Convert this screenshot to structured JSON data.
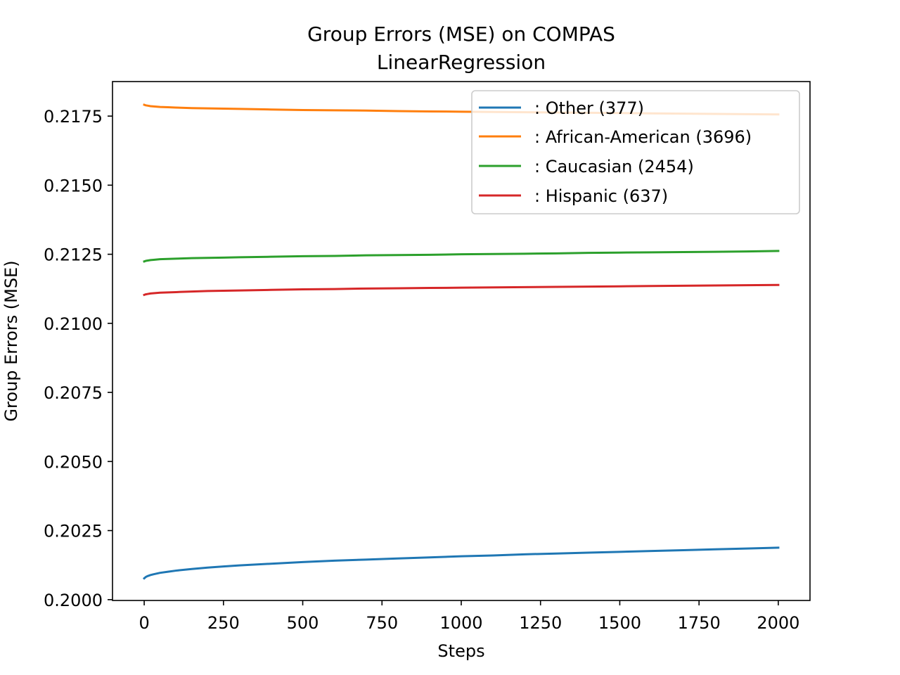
{
  "chart_data": {
    "type": "line",
    "title": "Group Errors (MSE) on COMPAS",
    "subtitle": "LinearRegression",
    "xlabel": "Steps",
    "ylabel": "Group Errors (MSE)",
    "xlim": [
      -100,
      2100
    ],
    "ylim": [
      0.19997,
      0.21875
    ],
    "x_ticks": [
      0,
      250,
      500,
      750,
      1000,
      1250,
      1500,
      1750,
      2000
    ],
    "x_tick_labels": [
      "0",
      "250",
      "500",
      "750",
      "1000",
      "1250",
      "1500",
      "1750",
      "2000"
    ],
    "y_ticks": [
      0.2,
      0.2025,
      0.205,
      0.2075,
      0.21,
      0.2125,
      0.215,
      0.2175
    ],
    "y_tick_labels": [
      "0.2000",
      "0.2025",
      "0.2050",
      "0.2075",
      "0.2100",
      "0.2125",
      "0.2150",
      "0.2175"
    ],
    "grid": false,
    "legend_position": "top-right",
    "x": [
      0,
      5,
      10,
      20,
      30,
      50,
      75,
      100,
      150,
      200,
      250,
      300,
      400,
      500,
      600,
      700,
      800,
      900,
      1000,
      1100,
      1200,
      1300,
      1400,
      1500,
      1600,
      1700,
      1800,
      1900,
      2000
    ],
    "series": [
      {
        "name": ": Other  (377)",
        "color": "#1f77b4",
        "values": [
          0.20077,
          0.20082,
          0.20085,
          0.20089,
          0.20092,
          0.20097,
          0.20101,
          0.20105,
          0.20111,
          0.20116,
          0.2012,
          0.20124,
          0.2013,
          0.20136,
          0.20141,
          0.20145,
          0.20149,
          0.20153,
          0.20157,
          0.2016,
          0.20164,
          0.20167,
          0.2017,
          0.20173,
          0.20176,
          0.20179,
          0.20182,
          0.20185,
          0.20188
        ]
      },
      {
        "name": ": African-American  (3696)",
        "color": "#ff7f0e",
        "values": [
          0.21791,
          0.21789,
          0.21788,
          0.21786,
          0.21785,
          0.21783,
          0.21782,
          0.21781,
          0.21779,
          0.21778,
          0.21777,
          0.21776,
          0.21774,
          0.21772,
          0.21771,
          0.2177,
          0.21768,
          0.21767,
          0.21766,
          0.21765,
          0.21764,
          0.21763,
          0.21762,
          0.21761,
          0.2176,
          0.21759,
          0.21758,
          0.21757,
          0.21756
        ]
      },
      {
        "name": ": Caucasian  (2454)",
        "color": "#2ca02c",
        "values": [
          0.21224,
          0.21226,
          0.21227,
          0.21229,
          0.2123,
          0.21232,
          0.21233,
          0.21234,
          0.21236,
          0.21237,
          0.21238,
          0.21239,
          0.21241,
          0.21243,
          0.21244,
          0.21246,
          0.21247,
          0.21248,
          0.2125,
          0.21251,
          0.21252,
          0.21253,
          0.21255,
          0.21256,
          0.21257,
          0.21258,
          0.21259,
          0.2126,
          0.21262
        ]
      },
      {
        "name": ": Hispanic  (637)",
        "color": "#d62728",
        "values": [
          0.21103,
          0.21105,
          0.21106,
          0.21108,
          0.21109,
          0.21111,
          0.21112,
          0.21113,
          0.21115,
          0.21117,
          0.21118,
          0.21119,
          0.21121,
          0.21123,
          0.21124,
          0.21126,
          0.21127,
          0.21128,
          0.21129,
          0.2113,
          0.21131,
          0.21132,
          0.21133,
          0.21134,
          0.21135,
          0.21136,
          0.21137,
          0.21138,
          0.21139
        ]
      }
    ]
  }
}
